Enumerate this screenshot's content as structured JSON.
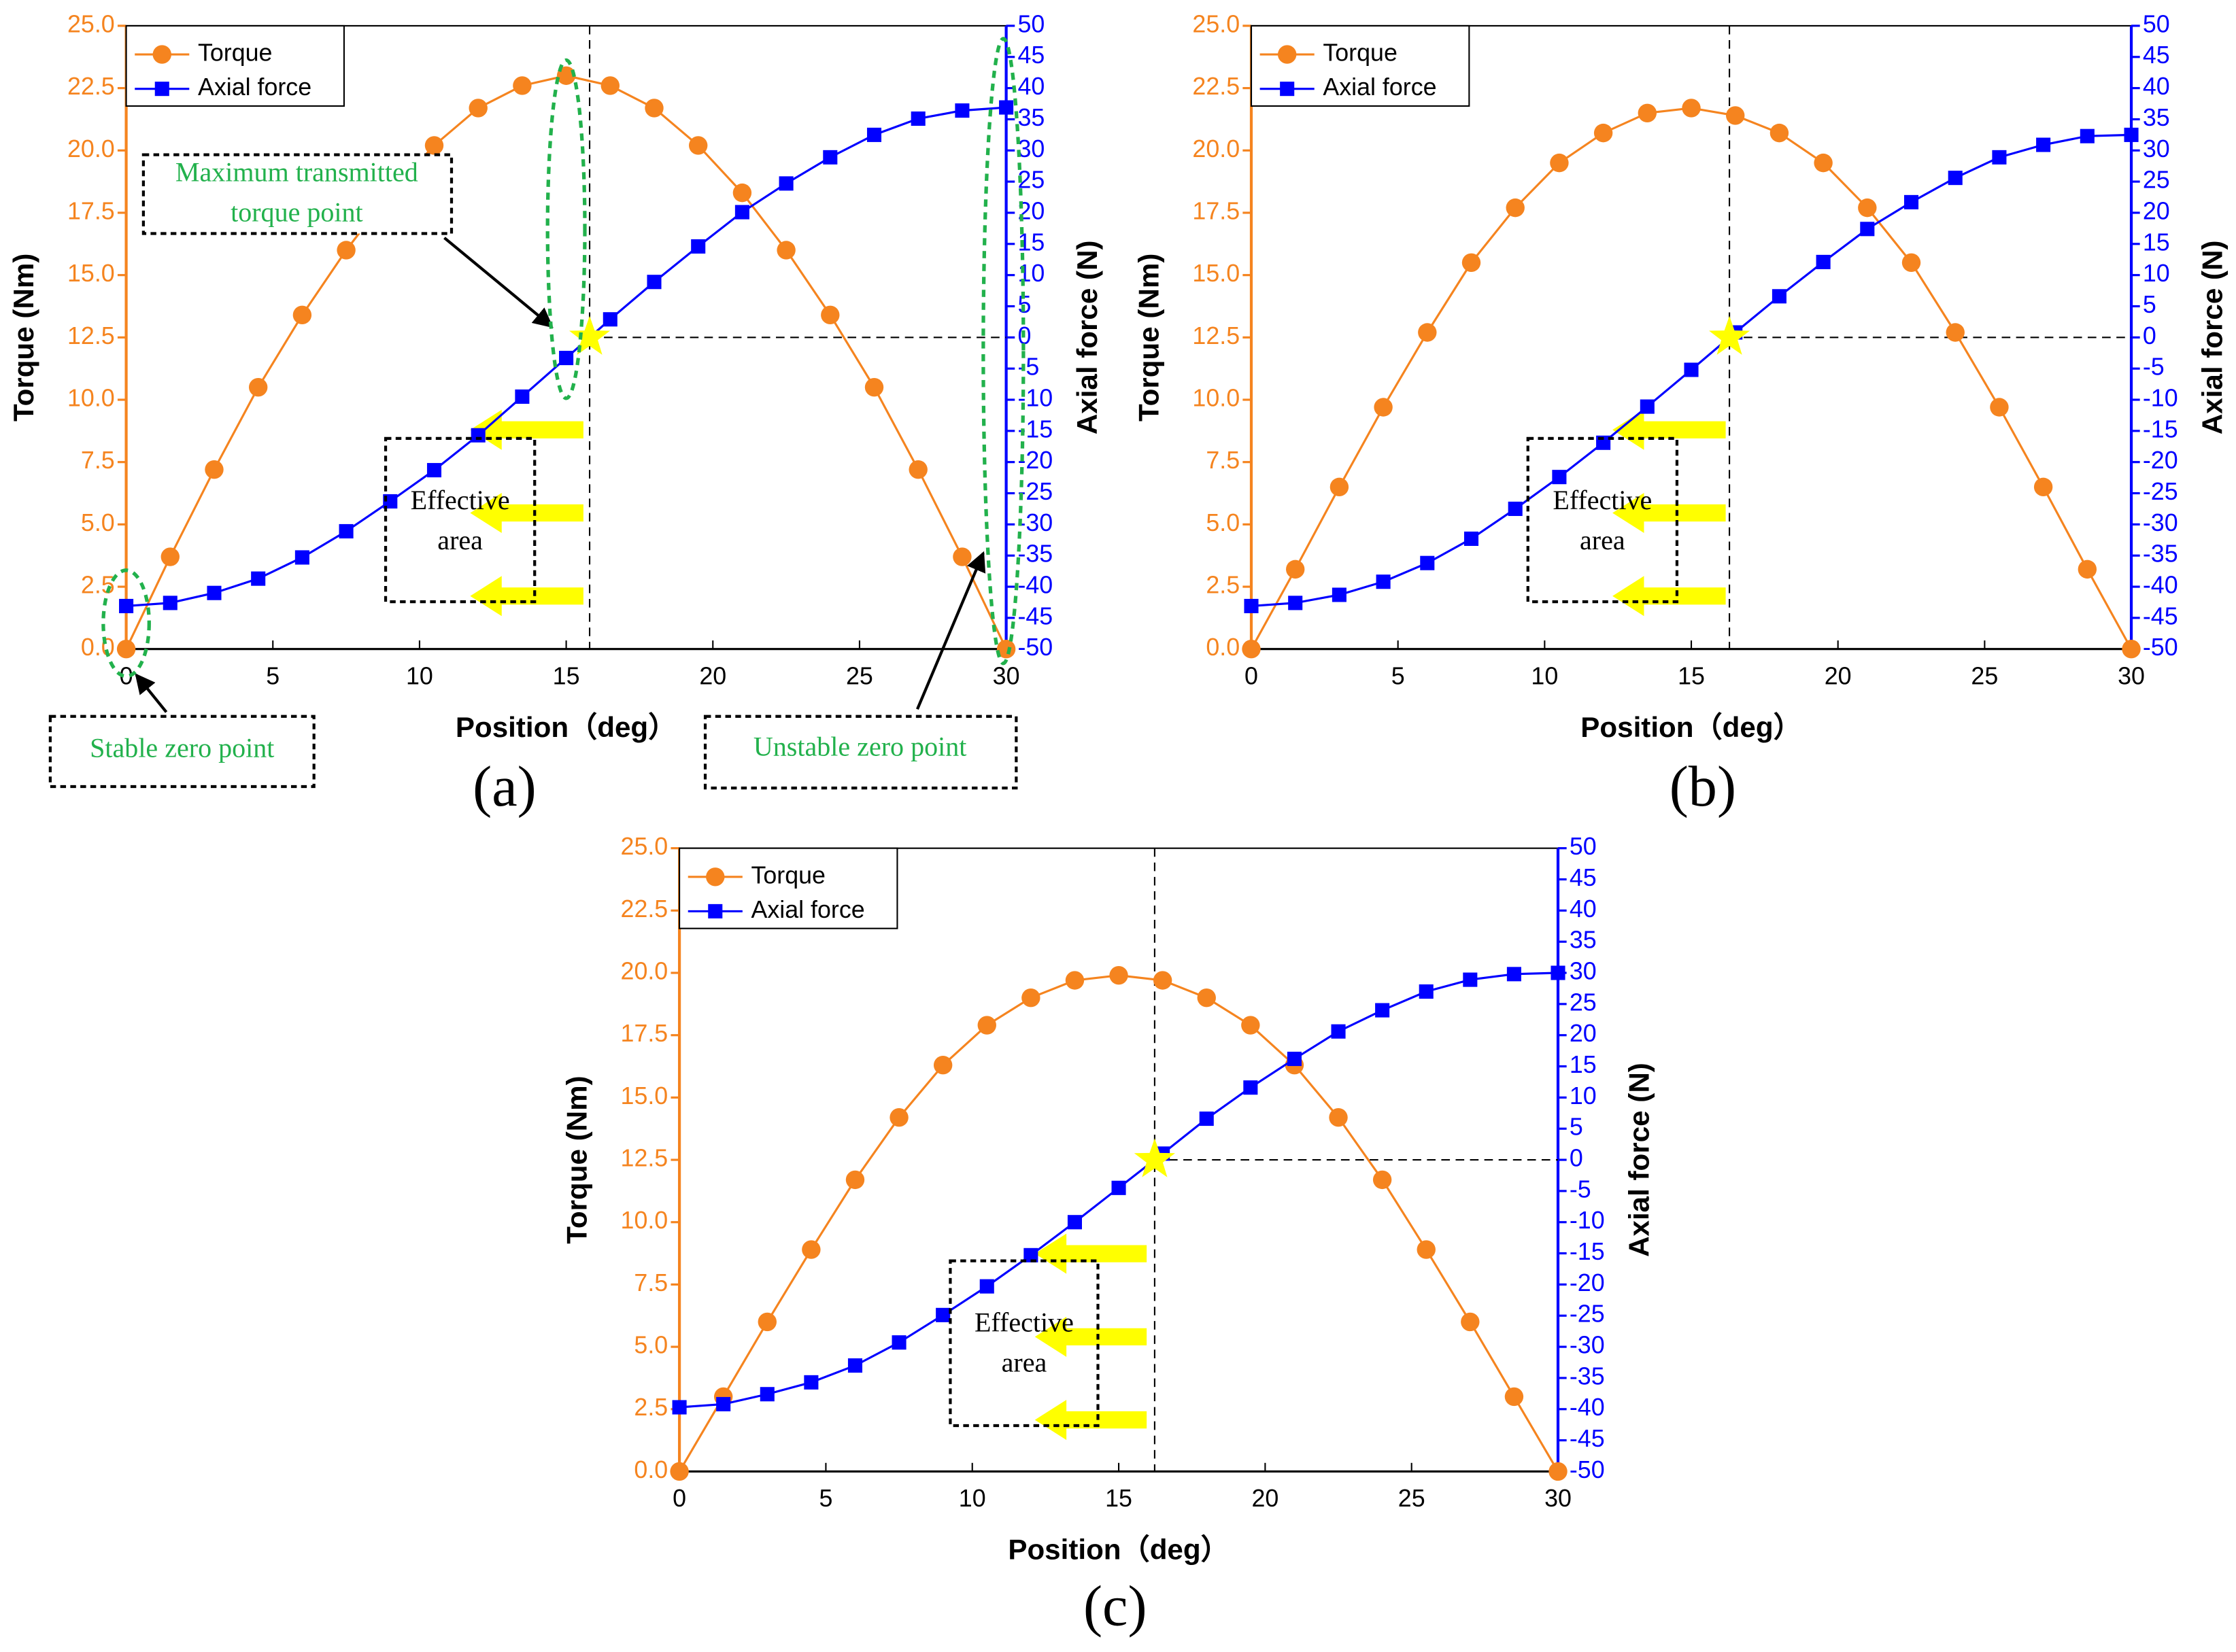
{
  "chart_data": [
    {
      "type": "line",
      "label": "(a)",
      "xlabel": "Position（deg）",
      "ylabel": "Torque (Nm)",
      "y2label": "Axial force (N)",
      "x": [
        0,
        1.5,
        3,
        4.5,
        6,
        7.5,
        9,
        10.5,
        12,
        13.5,
        15,
        16.5,
        18,
        19.5,
        21,
        22.5,
        24,
        25.5,
        27,
        28.5,
        30
      ],
      "series": [
        {
          "name": "Torque",
          "color": "#f5841f",
          "axis": "y",
          "marker": "circle",
          "values": [
            0,
            3.7,
            7.2,
            10.5,
            13.4,
            16.0,
            18.3,
            20.2,
            21.7,
            22.6,
            23.0,
            22.6,
            21.7,
            20.2,
            18.3,
            16.0,
            13.4,
            10.5,
            7.2,
            3.7,
            0
          ]
        },
        {
          "name": "Axial force",
          "color": "#0000ff",
          "axis": "y2",
          "marker": "square",
          "values": [
            -43.1,
            -42.6,
            -41.0,
            -38.7,
            -35.3,
            -31.1,
            -26.3,
            -21.3,
            -15.7,
            -9.5,
            -3.3,
            2.9,
            8.9,
            14.6,
            20.1,
            24.7,
            28.9,
            32.5,
            35.1,
            36.4,
            36.9
          ]
        }
      ],
      "xlim": [
        0,
        30
      ],
      "xticks": [
        0,
        5,
        10,
        15,
        20,
        25,
        30
      ],
      "ylim": [
        0,
        25
      ],
      "yticks": [
        {
          "value": 0,
          "label": "0.0"
        },
        {
          "value": 2.5,
          "label": "2.5"
        },
        {
          "value": 5,
          "label": "5.0"
        },
        {
          "value": 7.5,
          "label": "7.5"
        },
        {
          "value": 10,
          "label": "10.0"
        },
        {
          "value": 12.5,
          "label": "12.5"
        },
        {
          "value": 15,
          "label": "15.0"
        },
        {
          "value": 17.5,
          "label": "17.5"
        },
        {
          "value": 20,
          "label": "20.0"
        },
        {
          "value": 22.5,
          "label": "22.5"
        },
        {
          "value": 25,
          "label": "25.0"
        }
      ],
      "y2lim": [
        -50,
        50
      ],
      "y2ticks": [
        -50,
        -45,
        -40,
        -35,
        -30,
        -25,
        -20,
        -15,
        -10,
        -5,
        0,
        5,
        10,
        15,
        20,
        25,
        30,
        35,
        40,
        45,
        50
      ],
      "legend": "upper left",
      "grid": false,
      "area_label": [
        "Effective",
        "area"
      ],
      "annotations": [
        "Maximum transmitted",
        "torque point",
        "Stable zero point",
        "Unstable zero point"
      ]
    },
    {
      "type": "line",
      "label": "(b)",
      "xlabel": "Position（deg）",
      "ylabel": "Torque (Nm)",
      "y2label": "Axial force (N)",
      "x": [
        0,
        1.5,
        3,
        4.5,
        6,
        7.5,
        9,
        10.5,
        12,
        13.5,
        15,
        16.5,
        18,
        19.5,
        21,
        22.5,
        24,
        25.5,
        27,
        28.5,
        30
      ],
      "series": [
        {
          "name": "Torque",
          "color": "#f5841f",
          "axis": "y",
          "marker": "circle",
          "values": [
            0,
            3.2,
            6.5,
            9.7,
            12.7,
            15.5,
            17.7,
            19.5,
            20.7,
            21.5,
            21.7,
            21.4,
            20.7,
            19.5,
            17.7,
            15.5,
            12.7,
            9.7,
            6.5,
            3.2,
            0
          ]
        },
        {
          "name": "Axial force",
          "color": "#0000ff",
          "axis": "y2",
          "marker": "square",
          "values": [
            -43.1,
            -42.6,
            -41.3,
            -39.2,
            -36.2,
            -32.3,
            -27.5,
            -22.4,
            -16.9,
            -11.1,
            -5.2,
            0.8,
            6.6,
            12.1,
            17.4,
            21.7,
            25.6,
            28.9,
            30.9,
            32.3,
            32.5
          ]
        }
      ],
      "xlim": [
        0,
        30
      ],
      "xticks": [
        0,
        5,
        10,
        15,
        20,
        25,
        30
      ],
      "ylim": [
        0,
        25
      ],
      "yticks": [
        {
          "value": 0,
          "label": "0.0"
        },
        {
          "value": 2.5,
          "label": "2.5"
        },
        {
          "value": 5,
          "label": "5.0"
        },
        {
          "value": 7.5,
          "label": "7.5"
        },
        {
          "value": 10,
          "label": "10.0"
        },
        {
          "value": 12.5,
          "label": "12.5"
        },
        {
          "value": 15,
          "label": "15.0"
        },
        {
          "value": 17.5,
          "label": "17.5"
        },
        {
          "value": 20,
          "label": "20.0"
        },
        {
          "value": 22.5,
          "label": "22.5"
        },
        {
          "value": 25,
          "label": "25.0"
        }
      ],
      "y2lim": [
        -50,
        50
      ],
      "y2ticks": [
        -50,
        -45,
        -40,
        -35,
        -30,
        -25,
        -20,
        -15,
        -10,
        -5,
        0,
        5,
        10,
        15,
        20,
        25,
        30,
        35,
        40,
        45,
        50
      ],
      "legend": "upper left",
      "grid": false,
      "area_label": [
        "Effective",
        "area"
      ]
    },
    {
      "type": "line",
      "label": "(c)",
      "xlabel": "Position（deg）",
      "ylabel": "Torque (Nm)",
      "y2label": "Axial force (N)",
      "x": [
        0,
        1.5,
        3,
        4.5,
        6,
        7.5,
        9,
        10.5,
        12,
        13.5,
        15,
        16.5,
        18,
        19.5,
        21,
        22.5,
        24,
        25.5,
        27,
        28.5,
        30
      ],
      "series": [
        {
          "name": "Torque",
          "color": "#f5841f",
          "axis": "y",
          "marker": "circle",
          "values": [
            0,
            3.0,
            6.0,
            8.9,
            11.7,
            14.2,
            16.3,
            17.9,
            19.0,
            19.7,
            19.9,
            19.7,
            19.0,
            17.9,
            16.3,
            14.2,
            11.7,
            8.9,
            6.0,
            3.0,
            0
          ]
        },
        {
          "name": "Axial force",
          "color": "#0000ff",
          "axis": "y2",
          "marker": "square",
          "values": [
            -39.7,
            -39.2,
            -37.6,
            -35.7,
            -33.0,
            -29.3,
            -24.9,
            -20.3,
            -15.3,
            -10.0,
            -4.5,
            1.0,
            6.6,
            11.6,
            16.2,
            20.6,
            24.0,
            27.0,
            28.9,
            29.8,
            30.0
          ]
        }
      ],
      "xlim": [
        0,
        30
      ],
      "xticks": [
        0,
        5,
        10,
        15,
        20,
        25,
        30
      ],
      "ylim": [
        0,
        25
      ],
      "yticks": [
        {
          "value": 0,
          "label": "0.0"
        },
        {
          "value": 2.5,
          "label": "2.5"
        },
        {
          "value": 5,
          "label": "5.0"
        },
        {
          "value": 7.5,
          "label": "7.5"
        },
        {
          "value": 10,
          "label": "10.0"
        },
        {
          "value": 12.5,
          "label": "12.5"
        },
        {
          "value": 15,
          "label": "15.0"
        },
        {
          "value": 17.5,
          "label": "17.5"
        },
        {
          "value": 20,
          "label": "20.0"
        },
        {
          "value": 22.5,
          "label": "22.5"
        },
        {
          "value": 25,
          "label": "25.0"
        }
      ],
      "y2lim": [
        -50,
        50
      ],
      "y2ticks": [
        -50,
        -45,
        -40,
        -35,
        -30,
        -25,
        -20,
        -15,
        -10,
        -5,
        0,
        5,
        10,
        15,
        20,
        25,
        30,
        35,
        40,
        45,
        50
      ],
      "legend": "upper left",
      "grid": false,
      "area_label": [
        "Effective",
        "area"
      ]
    }
  ]
}
